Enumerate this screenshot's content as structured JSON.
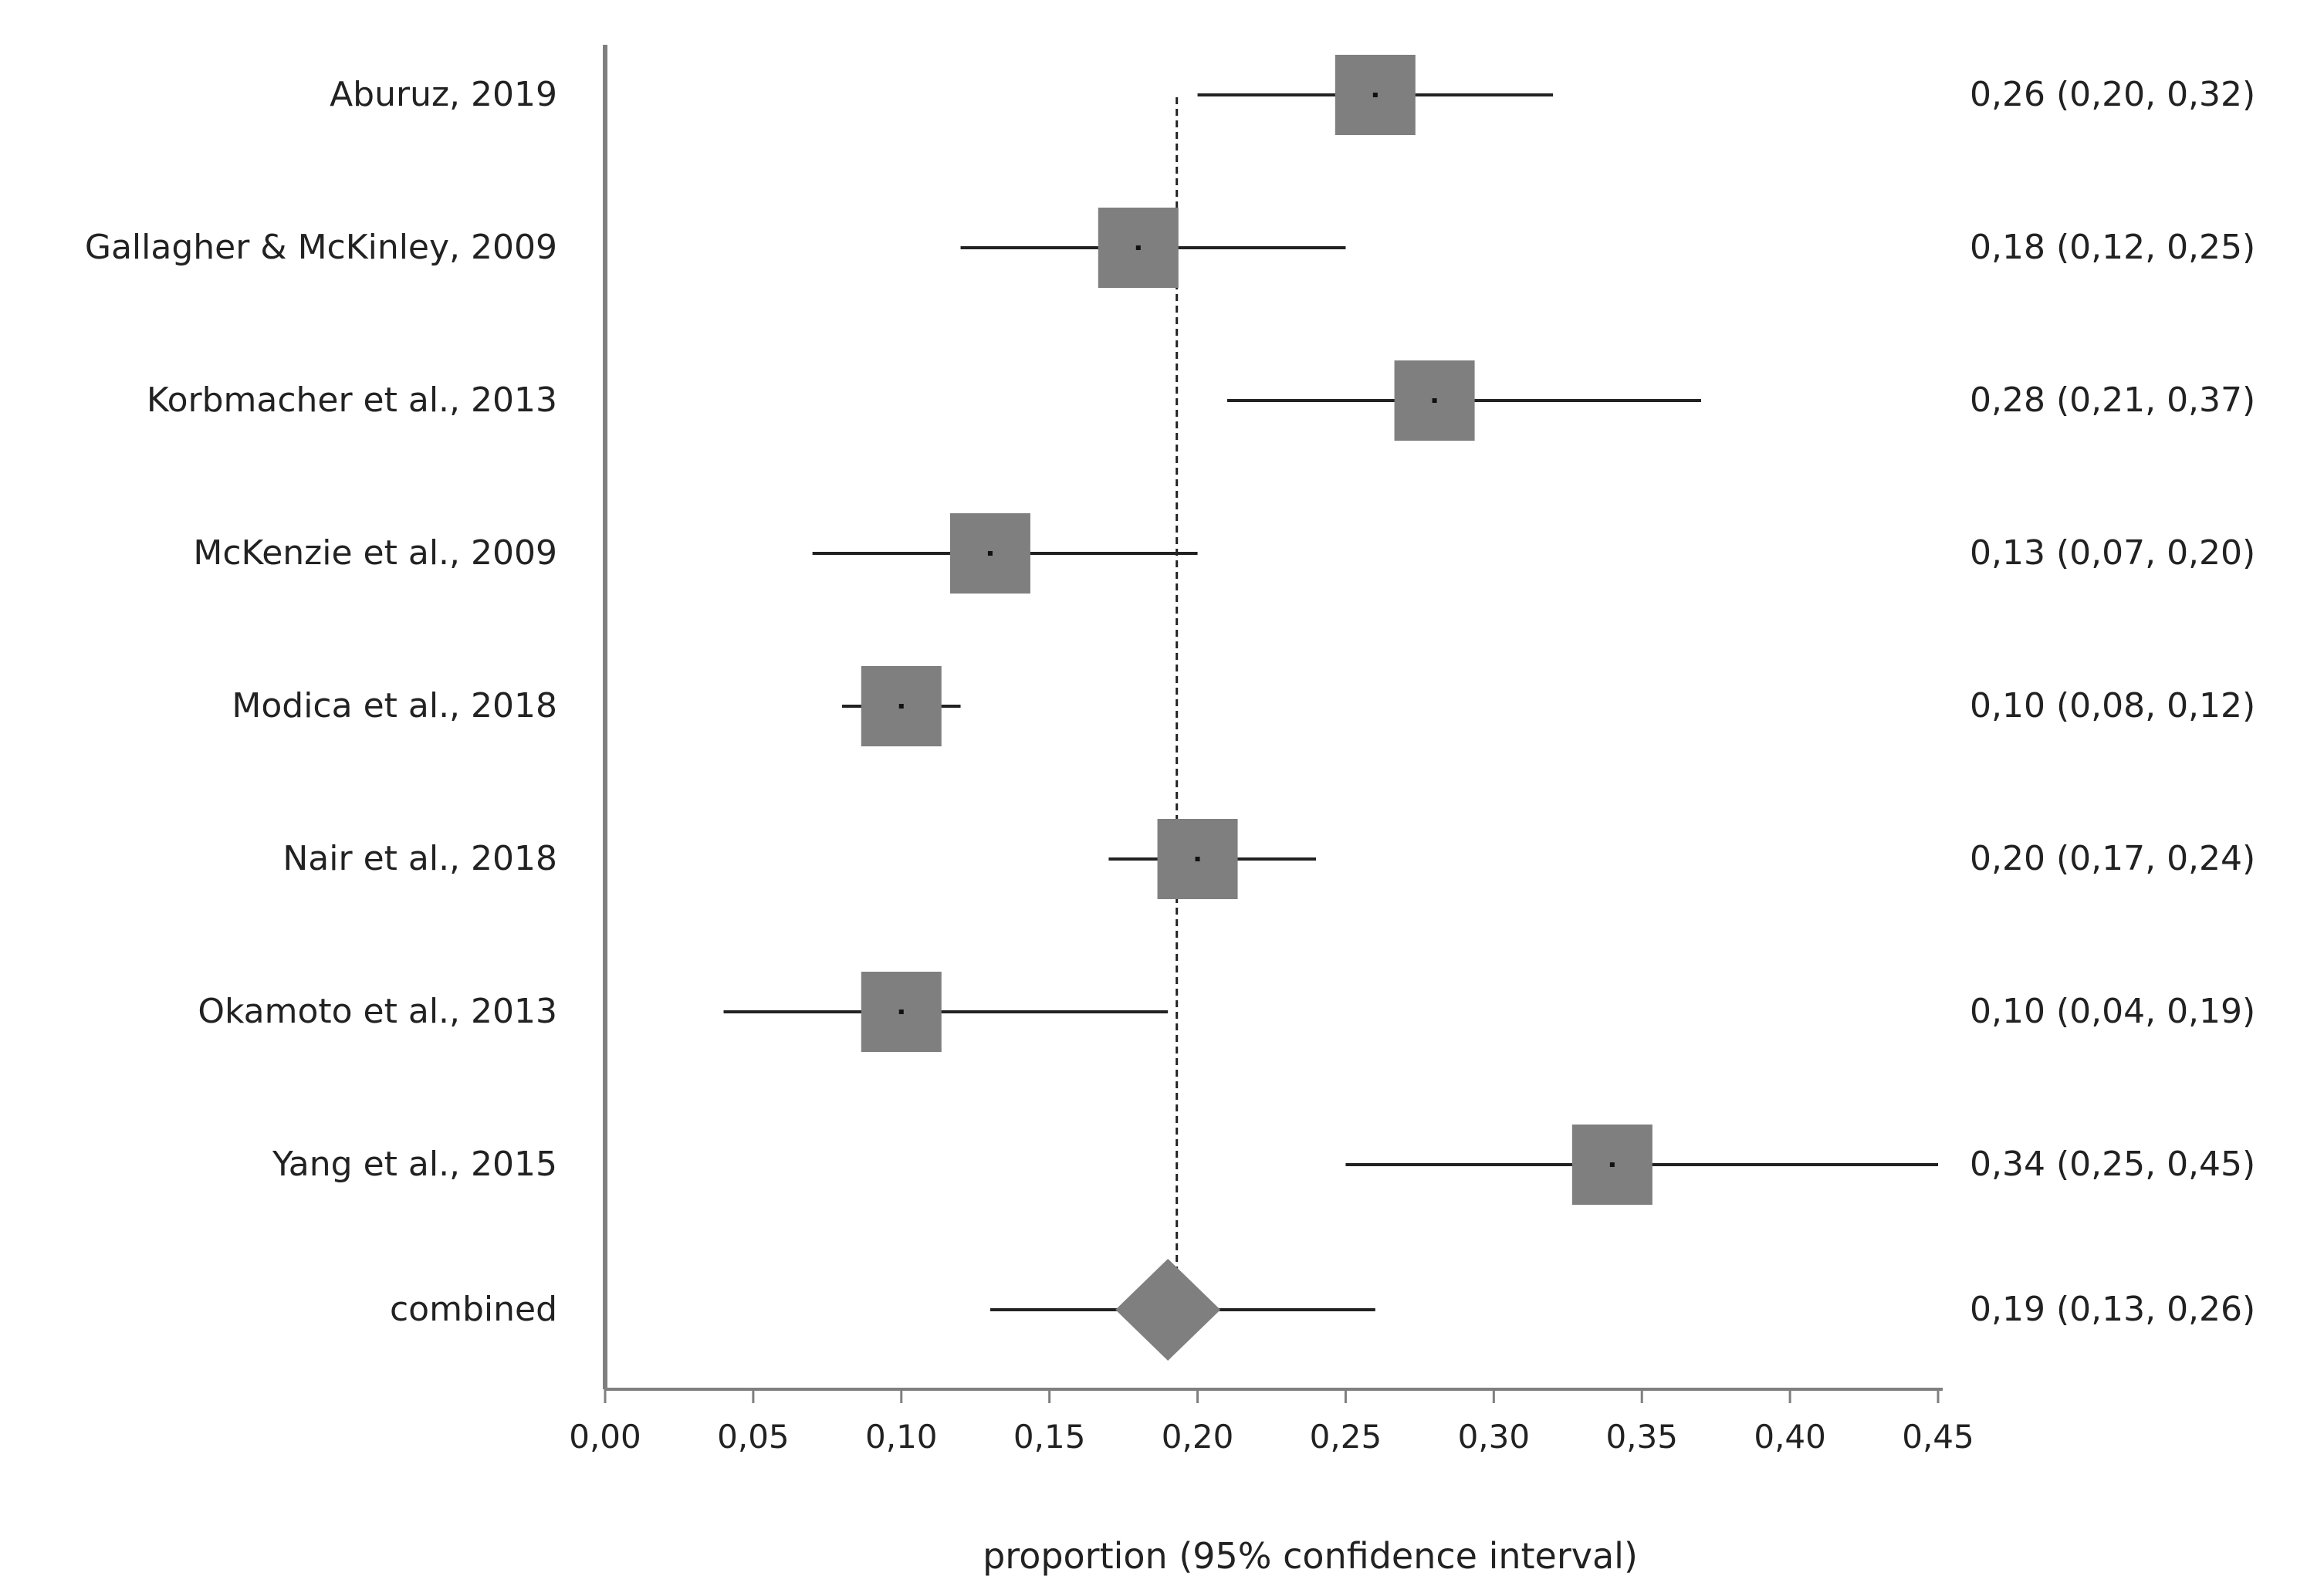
{
  "chart_data": {
    "type": "forest",
    "xlabel": "proportion (95% confidence interval)",
    "xlim": [
      0,
      0.45
    ],
    "ticks": [
      "0,00",
      "0,05",
      "0,10",
      "0,15",
      "0,20",
      "0,25",
      "0,30",
      "0,35",
      "0,40",
      "0,45"
    ],
    "tick_values": [
      0,
      0.05,
      0.1,
      0.15,
      0.2,
      0.25,
      0.3,
      0.35,
      0.4,
      0.45
    ],
    "reference_line": 0.193,
    "studies": [
      {
        "label": "Aburuz, 2019",
        "estimate": 0.26,
        "lower": 0.2,
        "upper": 0.32,
        "ci_text": "0,26 (0,20, 0,32)"
      },
      {
        "label": "Gallagher & McKinley, 2009",
        "estimate": 0.18,
        "lower": 0.12,
        "upper": 0.25,
        "ci_text": "0,18 (0,12, 0,25)"
      },
      {
        "label": "Korbmacher et al., 2013",
        "estimate": 0.28,
        "lower": 0.21,
        "upper": 0.37,
        "ci_text": "0,28 (0,21, 0,37)"
      },
      {
        "label": "McKenzie et al., 2009",
        "estimate": 0.13,
        "lower": 0.07,
        "upper": 0.2,
        "ci_text": "0,13 (0,07, 0,20)"
      },
      {
        "label": "Modica et al., 2018",
        "estimate": 0.1,
        "lower": 0.08,
        "upper": 0.12,
        "ci_text": "0,10 (0,08, 0,12)"
      },
      {
        "label": "Nair et al., 2018",
        "estimate": 0.2,
        "lower": 0.17,
        "upper": 0.24,
        "ci_text": "0,20 (0,17, 0,24)"
      },
      {
        "label": "Okamoto et al., 2013",
        "estimate": 0.1,
        "lower": 0.04,
        "upper": 0.19,
        "ci_text": "0,10 (0,04, 0,19)"
      },
      {
        "label": "Yang et al., 2015",
        "estimate": 0.34,
        "lower": 0.25,
        "upper": 0.45,
        "ci_text": "0,34 (0,25, 0,45)"
      }
    ],
    "combined": {
      "label": "combined",
      "estimate": 0.19,
      "lower": 0.13,
      "upper": 0.26,
      "ci_text": "0,19 (0,13, 0,26)"
    },
    "colors": {
      "marker": "#7f7f7f",
      "line": "#222222",
      "axis": "#7f7f7f",
      "text": "#222222"
    }
  }
}
